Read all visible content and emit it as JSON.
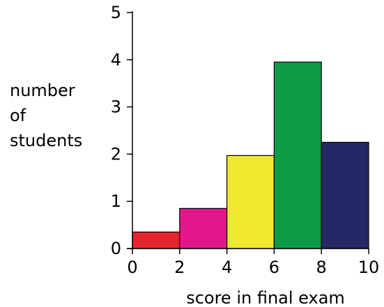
{
  "chart_data": {
    "type": "bar",
    "bins": [
      {
        "x0": 0,
        "x1": 2,
        "value": 0.35,
        "color": "#e3262d"
      },
      {
        "x0": 2,
        "x1": 4,
        "value": 0.85,
        "color": "#e2188a"
      },
      {
        "x0": 4,
        "x1": 6,
        "value": 1.97,
        "color": "#f1e930"
      },
      {
        "x0": 6,
        "x1": 8,
        "value": 3.95,
        "color": "#0d9b48"
      },
      {
        "x0": 8,
        "x1": 10,
        "value": 2.25,
        "color": "#262766"
      }
    ],
    "xlim": [
      0,
      10
    ],
    "ylim": [
      0,
      5
    ],
    "xticks": [
      "0",
      "2",
      "4",
      "6",
      "8",
      "10"
    ],
    "yticks": [
      "0",
      "1",
      "2",
      "3",
      "4",
      "5"
    ],
    "xlabel": "score in final exam",
    "ylabel_lines": [
      "number",
      "of",
      "students"
    ],
    "title": "",
    "grid": false
  }
}
